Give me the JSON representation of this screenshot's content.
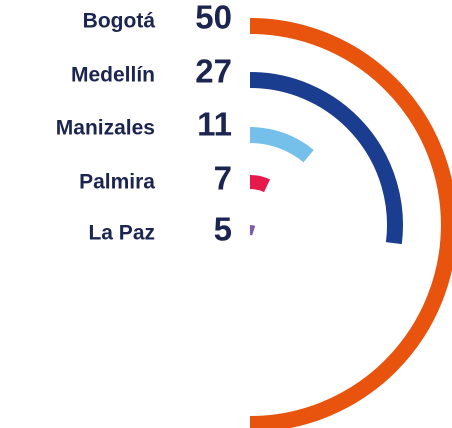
{
  "chart_data": {
    "type": "radial-bar",
    "categories": [
      "Bogotá",
      "Medellín",
      "Manizales",
      "Palmira",
      "La Paz"
    ],
    "values": [
      50,
      27,
      11,
      7,
      5
    ],
    "colors": [
      "#e8530e",
      "#1b3d8f",
      "#74c0ea",
      "#e5194b",
      "#7b5ea7"
    ],
    "ylim": [
      0,
      100
    ]
  }
}
